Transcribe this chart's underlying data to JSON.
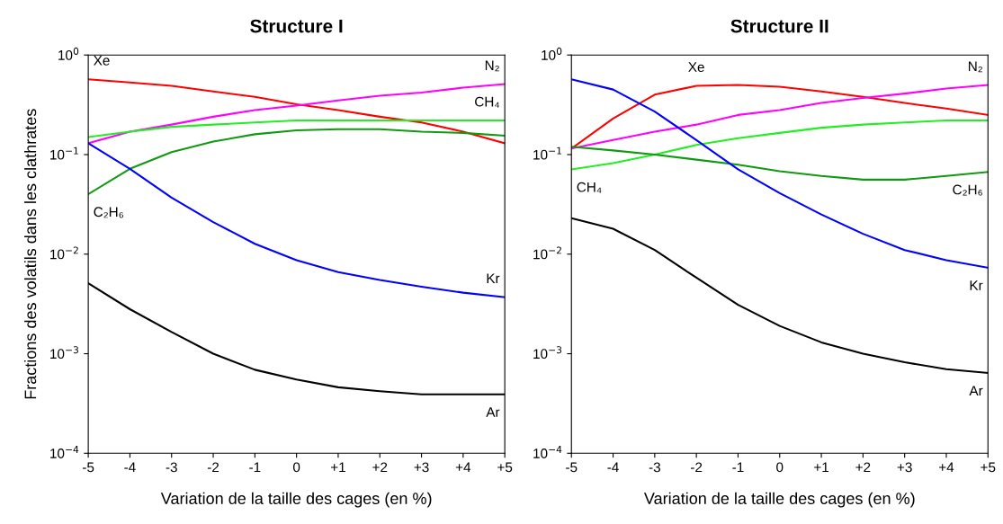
{
  "chart_data": [
    {
      "type": "line",
      "title": "Structure I",
      "xlabel": "Variation de la taille des cages (en %)",
      "ylabel": "Fractions des volatils dans les clathrates",
      "log": "y",
      "grid": false,
      "legend": false,
      "marker": "none",
      "line_style": "solid",
      "x": [
        -5,
        -4,
        -3,
        -2,
        -1,
        0,
        1,
        2,
        3,
        4,
        5
      ],
      "xlim": [
        -5,
        5
      ],
      "xticks": [
        -5,
        -4,
        -3,
        -2,
        -1,
        0,
        {
          "value": 1,
          "label": "+1"
        },
        {
          "value": 2,
          "label": "+2"
        },
        {
          "value": 3,
          "label": "+3"
        },
        {
          "value": 4,
          "label": "+4"
        },
        {
          "value": 5,
          "label": "+5"
        }
      ],
      "ylim": [
        0.0001,
        1
      ],
      "yticks": [
        {
          "value": 0.0001,
          "label": "10$^{−4}$"
        },
        {
          "value": 0.001,
          "label": "10$^{−3}$"
        },
        {
          "value": 0.01,
          "label": "10$^{−2}$"
        },
        {
          "value": 0.1,
          "label": "10$^{−1}$"
        },
        {
          "value": 1,
          "label": "10$^{0}$"
        }
      ],
      "series": [
        {
          "name": "Xe",
          "color": "#ff0000",
          "values": [
            0.57,
            0.53,
            0.49,
            0.43,
            0.38,
            0.32,
            0.28,
            0.24,
            0.21,
            0.17,
            0.13
          ]
        },
        {
          "name": "N₂",
          "color": "#ff00ff",
          "values": [
            0.13,
            0.17,
            0.2,
            0.24,
            0.28,
            0.31,
            0.35,
            0.39,
            0.42,
            0.47,
            0.51
          ]
        },
        {
          "name": "CH₄",
          "color": "#22ee22",
          "values": [
            0.15,
            0.17,
            0.19,
            0.2,
            0.21,
            0.22,
            0.22,
            0.22,
            0.22,
            0.22,
            0.22
          ]
        },
        {
          "name": "C₂H₆",
          "color": "#119911",
          "values": [
            0.04,
            0.072,
            0.106,
            0.135,
            0.16,
            0.175,
            0.18,
            0.18,
            0.17,
            0.165,
            0.155
          ]
        },
        {
          "name": "Kr",
          "color": "#0000ff",
          "values": [
            0.13,
            0.072,
            0.037,
            0.021,
            0.0127,
            0.0087,
            0.0066,
            0.0055,
            0.0047,
            0.0041,
            0.0037
          ]
        },
        {
          "name": "Ar",
          "color": "#000000",
          "values": [
            0.0051,
            0.0028,
            0.00165,
            0.001,
            0.00069,
            0.00055,
            0.00046,
            0.00042,
            0.00039,
            0.00039,
            0.00039
          ]
        }
      ]
    },
    {
      "type": "line",
      "title": "Structure II",
      "xlabel": "Variation de la taille des cages (en %)",
      "log": "y",
      "grid": false,
      "legend": false,
      "marker": "none",
      "line_style": "solid",
      "x": [
        -5,
        -4,
        -3,
        -2,
        -1,
        0,
        1,
        2,
        3,
        4,
        5
      ],
      "xlim": [
        -5,
        5
      ],
      "xticks": [
        -5,
        -4,
        -3,
        -2,
        -1,
        0,
        {
          "value": 1,
          "label": "+1"
        },
        {
          "value": 2,
          "label": "+2"
        },
        {
          "value": 3,
          "label": "+3"
        },
        {
          "value": 4,
          "label": "+4"
        },
        {
          "value": 5,
          "label": "+5"
        }
      ],
      "ylim": [
        0.0001,
        1
      ],
      "yticks": [
        {
          "value": 0.0001,
          "label": "10$^{−4}$"
        },
        {
          "value": 0.001,
          "label": "10$^{−3}$"
        },
        {
          "value": 0.01,
          "label": "10$^{−2}$"
        },
        {
          "value": 0.1,
          "label": "10$^{−1}$"
        },
        {
          "value": 1,
          "label": "10$^{0}$"
        }
      ],
      "series": [
        {
          "name": "Xe",
          "color": "#ff0000",
          "values": [
            0.115,
            0.23,
            0.4,
            0.49,
            0.5,
            0.48,
            0.43,
            0.38,
            0.33,
            0.29,
            0.25
          ]
        },
        {
          "name": "N₂",
          "color": "#ff00ff",
          "values": [
            0.115,
            0.14,
            0.17,
            0.2,
            0.25,
            0.28,
            0.33,
            0.37,
            0.41,
            0.46,
            0.5
          ]
        },
        {
          "name": "CH₄",
          "color": "#22ee22",
          "values": [
            0.071,
            0.082,
            0.1,
            0.125,
            0.146,
            0.165,
            0.186,
            0.2,
            0.21,
            0.22,
            0.22
          ]
        },
        {
          "name": "C₂H₆",
          "color": "#119911",
          "values": [
            0.12,
            0.11,
            0.1,
            0.089,
            0.079,
            0.068,
            0.061,
            0.056,
            0.056,
            0.061,
            0.067
          ]
        },
        {
          "name": "Kr",
          "color": "#0000ff",
          "values": [
            0.57,
            0.45,
            0.27,
            0.14,
            0.071,
            0.041,
            0.025,
            0.016,
            0.011,
            0.0087,
            0.0073
          ]
        },
        {
          "name": "Ar",
          "color": "#000000",
          "values": [
            0.023,
            0.018,
            0.011,
            0.0058,
            0.0031,
            0.0019,
            0.0013,
            0.001,
            0.00082,
            0.0007,
            0.00064
          ]
        }
      ]
    }
  ]
}
